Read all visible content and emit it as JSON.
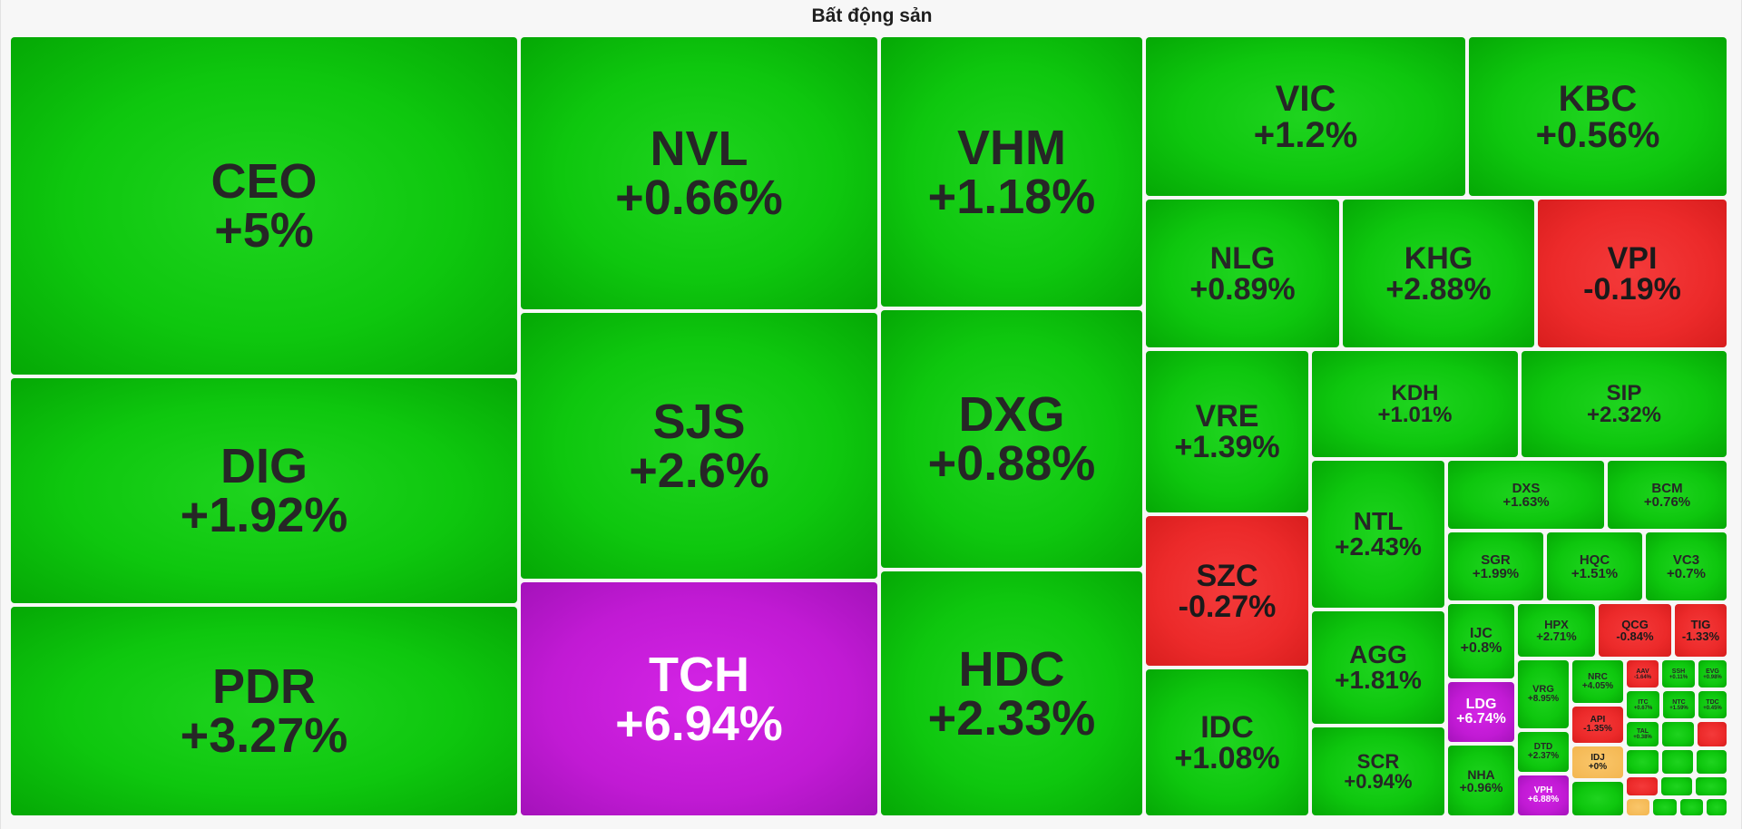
{
  "colors": {
    "up": "#0ec70e",
    "down": "#ec2a2a",
    "ceiling": "#c11ad4",
    "reference": "#f3b650",
    "text_dark": "#262626",
    "text_light": "#ffffff"
  },
  "chart_data": {
    "type": "treemap",
    "title": "Bất động sản",
    "items": [
      {
        "symbol": "CEO",
        "change": "+5%",
        "status": "up"
      },
      {
        "symbol": "DIG",
        "change": "+1.92%",
        "status": "up"
      },
      {
        "symbol": "PDR",
        "change": "+3.27%",
        "status": "up"
      },
      {
        "symbol": "NVL",
        "change": "+0.66%",
        "status": "up"
      },
      {
        "symbol": "SJS",
        "change": "+2.6%",
        "status": "up"
      },
      {
        "symbol": "TCH",
        "change": "+6.94%",
        "status": "ceiling"
      },
      {
        "symbol": "VHM",
        "change": "+1.18%",
        "status": "up"
      },
      {
        "symbol": "DXG",
        "change": "+0.88%",
        "status": "up"
      },
      {
        "symbol": "HDC",
        "change": "+2.33%",
        "status": "up"
      },
      {
        "symbol": "VIC",
        "change": "+1.2%",
        "status": "up"
      },
      {
        "symbol": "KBC",
        "change": "+0.56%",
        "status": "up"
      },
      {
        "symbol": "NLG",
        "change": "+0.89%",
        "status": "up"
      },
      {
        "symbol": "KHG",
        "change": "+2.88%",
        "status": "up"
      },
      {
        "symbol": "VPI",
        "change": "-0.19%",
        "status": "down"
      },
      {
        "symbol": "VRE",
        "change": "+1.39%",
        "status": "up"
      },
      {
        "symbol": "SZC",
        "change": "-0.27%",
        "status": "down"
      },
      {
        "symbol": "IDC",
        "change": "+1.08%",
        "status": "up"
      },
      {
        "symbol": "KDH",
        "change": "+1.01%",
        "status": "up"
      },
      {
        "symbol": "SIP",
        "change": "+2.32%",
        "status": "up"
      },
      {
        "symbol": "NTL",
        "change": "+2.43%",
        "status": "up"
      },
      {
        "symbol": "AGG",
        "change": "+1.81%",
        "status": "up"
      },
      {
        "symbol": "SCR",
        "change": "+0.94%",
        "status": "up"
      },
      {
        "symbol": "DXS",
        "change": "+1.63%",
        "status": "up"
      },
      {
        "symbol": "BCM",
        "change": "+0.76%",
        "status": "up"
      },
      {
        "symbol": "SGR",
        "change": "+1.99%",
        "status": "up"
      },
      {
        "symbol": "HQC",
        "change": "+1.51%",
        "status": "up"
      },
      {
        "symbol": "VC3",
        "change": "+0.7%",
        "status": "up"
      },
      {
        "symbol": "IJC",
        "change": "+0.8%",
        "status": "up"
      },
      {
        "symbol": "HPX",
        "change": "+2.71%",
        "status": "up"
      },
      {
        "symbol": "QCG",
        "change": "-0.84%",
        "status": "down"
      },
      {
        "symbol": "TIG",
        "change": "-1.33%",
        "status": "down"
      },
      {
        "symbol": "LDG",
        "change": "+6.74%",
        "status": "ceiling"
      },
      {
        "symbol": "NHA",
        "change": "+0.96%",
        "status": "up"
      },
      {
        "symbol": "VRG",
        "change": "+8.95%",
        "status": "up"
      },
      {
        "symbol": "DTD",
        "change": "+2.37%",
        "status": "up"
      },
      {
        "symbol": "VPH",
        "change": "+6.88%",
        "status": "ceiling"
      },
      {
        "symbol": "NRC",
        "change": "+4.05%",
        "status": "up"
      },
      {
        "symbol": "API",
        "change": "-1.35%",
        "status": "down"
      },
      {
        "symbol": "IDJ",
        "change": "+0%",
        "status": "reference"
      },
      {
        "symbol": "AAV",
        "change": "-1.64%",
        "status": "down"
      },
      {
        "symbol": "SSH",
        "change": "+0.11%",
        "status": "up"
      },
      {
        "symbol": "EVG",
        "change": "+0.98%",
        "status": "up"
      },
      {
        "symbol": "ITC",
        "change": "+0.67%",
        "status": "up"
      },
      {
        "symbol": "NTC",
        "change": "+1.59%",
        "status": "up"
      },
      {
        "symbol": "TDC",
        "change": "+0.45%",
        "status": "up"
      },
      {
        "symbol": "TAL",
        "change": "+0.38%",
        "status": "up"
      },
      {
        "symbol": "",
        "change": "",
        "status": "up"
      },
      {
        "symbol": "",
        "change": "",
        "status": "down"
      },
      {
        "symbol": "",
        "change": "",
        "status": "up"
      },
      {
        "symbol": "",
        "change": "",
        "status": "up"
      },
      {
        "symbol": "",
        "change": "",
        "status": "up"
      },
      {
        "symbol": "",
        "change": "",
        "status": "down"
      },
      {
        "symbol": "",
        "change": "",
        "status": "up"
      },
      {
        "symbol": "",
        "change": "",
        "status": "up"
      },
      {
        "symbol": "",
        "change": "",
        "status": "reference"
      },
      {
        "symbol": "",
        "change": "",
        "status": "up"
      },
      {
        "symbol": "",
        "change": "",
        "status": "up"
      },
      {
        "symbol": "",
        "change": "",
        "status": "up"
      },
      {
        "symbol": "",
        "change": "",
        "status": "up"
      },
      {
        "symbol": "",
        "change": "",
        "status": "up"
      },
      {
        "symbol": "",
        "change": "",
        "status": "down"
      },
      {
        "symbol": "",
        "change": "",
        "status": "up"
      },
      {
        "symbol": "",
        "change": "",
        "status": "up"
      },
      {
        "symbol": "",
        "change": "",
        "status": "up"
      },
      {
        "symbol": "",
        "change": "",
        "status": "up"
      },
      {
        "symbol": "",
        "change": "",
        "status": "up"
      },
      {
        "symbol": "",
        "change": "",
        "status": "reference"
      },
      {
        "symbol": "",
        "change": "",
        "status": "up"
      },
      {
        "symbol": "",
        "change": "",
        "status": "up"
      },
      {
        "symbol": "",
        "change": "",
        "status": "down"
      },
      {
        "symbol": "",
        "change": "",
        "status": "up"
      },
      {
        "symbol": "",
        "change": "",
        "status": "ceiling"
      },
      {
        "symbol": "",
        "change": "",
        "status": "up"
      },
      {
        "symbol": "",
        "change": "",
        "status": "up"
      },
      {
        "symbol": "",
        "change": "",
        "status": "up"
      },
      {
        "symbol": "",
        "change": "",
        "status": "up"
      }
    ]
  }
}
